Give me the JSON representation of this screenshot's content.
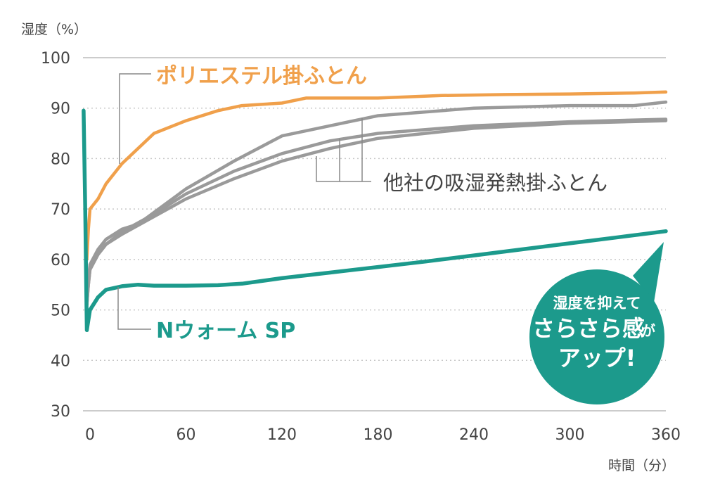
{
  "chart_data": {
    "type": "line",
    "ylabel": "湿度（%）",
    "xlabel": "時間（分）",
    "xlim": [
      -5,
      360
    ],
    "ylim": [
      30,
      100
    ],
    "x_ticks": [
      0,
      60,
      120,
      180,
      240,
      300,
      360
    ],
    "y_ticks": [
      30,
      40,
      50,
      60,
      70,
      80,
      90,
      100
    ],
    "grid": "horizontal-dotted",
    "colors": {
      "orange": "#f0a04b",
      "gray": "#9a9a9a",
      "teal": "#1c9a8c"
    },
    "series": [
      {
        "name": "ポリエステル掛ふとん",
        "color": "#f0a04b",
        "x": [
          -2,
          -1,
          0,
          5,
          10,
          20,
          40,
          60,
          80,
          95,
          120,
          135,
          180,
          220,
          260,
          300,
          340,
          360
        ],
        "y": [
          60,
          66,
          70,
          72,
          75,
          79,
          85,
          87.5,
          89.5,
          90.5,
          91,
          92,
          92,
          92.5,
          92.7,
          92.8,
          93,
          93.2
        ]
      },
      {
        "name": "他社の吸湿発熱掛ふとん",
        "color": "#9a9a9a",
        "x": [
          -2,
          -1,
          0,
          5,
          10,
          20,
          30,
          60,
          90,
          120,
          150,
          180,
          240,
          300,
          340,
          360
        ],
        "y": [
          52,
          56,
          59,
          62,
          64,
          66,
          67,
          74,
          79.5,
          84.5,
          86.5,
          88.5,
          90,
          90.5,
          90.5,
          91.2
        ]
      },
      {
        "name": "",
        "color": "#9a9a9a",
        "x": [
          -2,
          -1,
          0,
          5,
          10,
          20,
          40,
          60,
          90,
          120,
          150,
          180,
          240,
          300,
          360
        ],
        "y": [
          51,
          55,
          58,
          61,
          63,
          65.5,
          69,
          73,
          77.5,
          81,
          83.5,
          85,
          86.5,
          87.3,
          87.8
        ]
      },
      {
        "name": "",
        "color": "#9a9a9a",
        "x": [
          -2,
          -1,
          0,
          5,
          10,
          20,
          40,
          60,
          90,
          120,
          150,
          180,
          240,
          300,
          360
        ],
        "y": [
          51,
          55,
          58,
          61,
          63,
          65,
          68.5,
          72,
          76,
          79.5,
          82,
          84,
          86,
          87,
          87.5
        ]
      },
      {
        "name": "Nウォーム SP",
        "color": "#1c9a8c",
        "x": [
          -4,
          -3,
          -2,
          -1,
          0,
          5,
          10,
          20,
          30,
          40,
          60,
          80,
          95,
          120,
          150,
          180,
          210,
          240,
          270,
          300,
          330,
          360
        ],
        "y": [
          89.5,
          70,
          46,
          48,
          50,
          52.5,
          54,
          54.7,
          55,
          54.8,
          54.8,
          54.9,
          55.2,
          56.3,
          57.4,
          58.5,
          59.6,
          60.8,
          62,
          63.2,
          64.4,
          65.6
        ]
      }
    ],
    "annotation": [
      "湿度を抑えて",
      "さらさら感",
      "が",
      "アップ!"
    ]
  }
}
